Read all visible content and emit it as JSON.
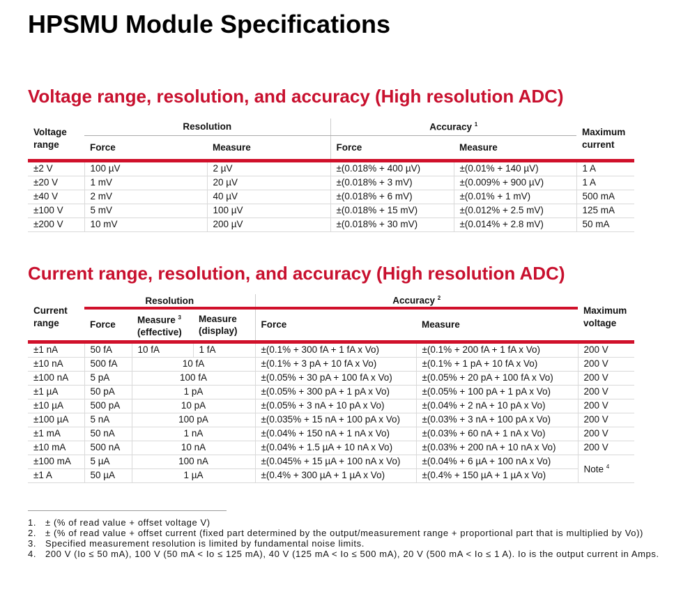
{
  "page_title": "HPSMU Module Specifications",
  "voltage": {
    "heading": "Voltage range, resolution, and accuracy (High resolution ADC)",
    "col_range": "Voltage range",
    "col_resolution": "Resolution",
    "col_accuracy": "Accuracy",
    "accuracy_sup": "1",
    "col_force": "Force",
    "col_measure": "Measure",
    "col_max": "Maximum current",
    "rows": [
      {
        "range": "±2 V",
        "res_force": "100 µV",
        "res_measure": "2 µV",
        "acc_force": "±(0.018% + 400 µV)",
        "acc_measure": "±(0.01% + 140 µV)",
        "max": "1 A"
      },
      {
        "range": "±20 V",
        "res_force": "1 mV",
        "res_measure": "20 µV",
        "acc_force": "±(0.018% + 3 mV)",
        "acc_measure": "±(0.009% + 900 µV)",
        "max": "1 A"
      },
      {
        "range": "±40 V",
        "res_force": "2 mV",
        "res_measure": "40 µV",
        "acc_force": "±(0.018% + 6 mV)",
        "acc_measure": "±(0.01% + 1 mV)",
        "max": "500 mA"
      },
      {
        "range": "±100 V",
        "res_force": "5 mV",
        "res_measure": "100 µV",
        "acc_force": "±(0.018% + 15 mV)",
        "acc_measure": "±(0.012% + 2.5 mV)",
        "max": "125 mA"
      },
      {
        "range": "±200 V",
        "res_force": "10 mV",
        "res_measure": "200 µV",
        "acc_force": "±(0.018% + 30 mV)",
        "acc_measure": "±(0.014% + 2.8 mV)",
        "max": "50 mA"
      }
    ]
  },
  "current": {
    "heading": "Current range, resolution, and accuracy (High resolution ADC)",
    "col_range": "Current range",
    "col_resolution": "Resolution",
    "col_accuracy": "Accuracy",
    "accuracy_sup": "2",
    "col_force": "Force",
    "col_measure_eff": "Measure",
    "measure_eff_sup": "3",
    "col_measure_eff_sub": "(effective)",
    "col_measure_disp": "Measure",
    "col_measure_disp_sub": "(display)",
    "col_acc_force": "Force",
    "col_acc_measure": "Measure",
    "col_max": "Maximum voltage",
    "first_row": {
      "range": "±1 nA",
      "res_force": "50 fA",
      "res_eff": "10 fA",
      "res_disp": "1 fA",
      "acc_force": "±(0.1% + 300 fA + 1 fA x Vo)",
      "acc_measure": "±(0.1% + 200 fA + 1 fA x Vo)",
      "max": "200 V"
    },
    "rows": [
      {
        "range": "±10 nA",
        "res_force": "500 fA",
        "res_measure": "10 fA",
        "acc_force": "±(0.1% + 3 pA + 10 fA x Vo)",
        "acc_measure": "±(0.1% + 1 pA + 10 fA x Vo)",
        "max": "200 V"
      },
      {
        "range": "±100 nA",
        "res_force": "5 pA",
        "res_measure": "100 fA",
        "acc_force": "±(0.05% + 30 pA + 100 fA x Vo)",
        "acc_measure": "±(0.05% + 20 pA + 100 fA x Vo)",
        "max": "200 V"
      },
      {
        "range": "±1 µA",
        "res_force": "50 pA",
        "res_measure": "1 pA",
        "acc_force": "±(0.05% + 300 pA + 1 pA x Vo)",
        "acc_measure": "±(0.05% + 100 pA + 1 pA x Vo)",
        "max": "200 V"
      },
      {
        "range": "±10 µA",
        "res_force": "500 pA",
        "res_measure": "10 pA",
        "acc_force": "±(0.05% + 3 nA + 10 pA x Vo)",
        "acc_measure": "±(0.04% + 2 nA + 10 pA x Vo)",
        "max": "200 V"
      },
      {
        "range": "±100 µA",
        "res_force": "5 nA",
        "res_measure": "100 pA",
        "acc_force": "±(0.035% + 15 nA + 100 pA x Vo)",
        "acc_measure": "±(0.03% + 3 nA + 100 pA x Vo)",
        "max": "200 V"
      },
      {
        "range": "±1 mA",
        "res_force": "50 nA",
        "res_measure": "1 nA",
        "acc_force": "±(0.04% + 150 nA + 1 nA x Vo)",
        "acc_measure": "±(0.03% + 60 nA + 1 nA x Vo)",
        "max": "200 V"
      },
      {
        "range": "±10 mA",
        "res_force": "500 nA",
        "res_measure": "10 nA",
        "acc_force": "±(0.04% + 1.5 µA + 10 nA x Vo)",
        "acc_measure": "±(0.03% + 200 nA + 10 nA x Vo)",
        "max": "200 V"
      }
    ],
    "last_rows": [
      {
        "range": "±100 mA",
        "res_force": "5 µA",
        "res_measure": "100 nA",
        "acc_force": "±(0.045% + 15 µA + 100 nA x Vo)",
        "acc_measure": "±(0.04% + 6 µA + 100 nA x Vo)"
      },
      {
        "range": "±1 A",
        "res_force": "50 µA",
        "res_measure": "1 µA",
        "acc_force": "±(0.4% + 300 µA + 1 µA x Vo)",
        "acc_measure": "±(0.4% + 150 µA + 1 µA x Vo)"
      }
    ],
    "note_label": "Note",
    "note_sup": "4"
  },
  "footnotes": [
    {
      "num": "1.",
      "text": "± (% of read value + offset voltage V)"
    },
    {
      "num": "2.",
      "text": "± (% of read value + offset current (fixed part determined by the output/measurement range + proportional part that is multiplied by Vo))"
    },
    {
      "num": "3.",
      "text": "Specified measurement resolution is limited by fundamental noise limits."
    },
    {
      "num": "4.",
      "text": "200 V (Io ≤ 50 mA), 100 V (50 mA < Io ≤ 125 mA), 40 V (125 mA < Io ≤ 500 mA), 20 V (500 mA < Io ≤ 1 A). Io is the output current in Amps."
    }
  ]
}
